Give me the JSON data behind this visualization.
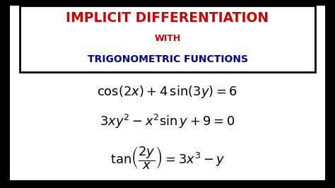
{
  "outer_bg": "#000000",
  "inner_bg": "#ffffff",
  "title_line1": "IMPLICIT DIFFERENTIATION",
  "title_line2": "WITH",
  "title_line3": "TRIGONOMETRIC FUNCTIONS",
  "title_color1": "#cc0000",
  "title_color2": "#cc0000",
  "title_color3": "#00008b",
  "eq1": "$\\mathrm{cos}(2x) + 4\\,\\mathrm{sin}(3y) = 6$",
  "eq2": "$3xy^2 - x^2\\mathrm{sin}\\,y + 9 = 0$",
  "eq3": "$\\mathrm{tan}\\left(\\dfrac{2y}{x}\\right) = 3x^3 - y$",
  "eq_color": "#000000",
  "eq_fontsize": 13,
  "title_fontsize1": 13.5,
  "title_fontsize2": 9,
  "title_fontsize3": 10
}
